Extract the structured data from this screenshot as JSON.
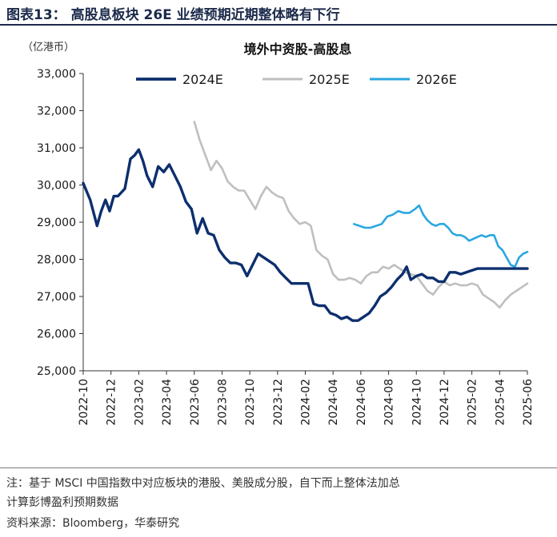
{
  "header": {
    "figure_title": "图表13：  高股息板块 26E 业绩预期近期整体略有下行"
  },
  "chart_data": {
    "type": "line",
    "title": "境外中资股-高股息",
    "unit_label": "（亿港币）",
    "ylim": [
      25000,
      33000
    ],
    "yticks": [
      25000,
      26000,
      27000,
      28000,
      29000,
      30000,
      31000,
      32000,
      33000
    ],
    "ytick_labels": [
      "25,000",
      "26,000",
      "27,000",
      "28,000",
      "29,000",
      "30,000",
      "31,000",
      "32,000",
      "33,000"
    ],
    "xlim": [
      0,
      32
    ],
    "xtick_labels": [
      "2022-10",
      "2022-12",
      "2023-02",
      "2023-04",
      "2023-06",
      "2023-08",
      "2023-10",
      "2023-12",
      "2024-02",
      "2024-04",
      "2024-06",
      "2024-08",
      "2024-10",
      "2024-12",
      "2025-02",
      "2025-04",
      "2025-06"
    ],
    "x_unit": "months since 2022-10",
    "legend_position": "top",
    "series": [
      {
        "name": "2024E",
        "color": "#0d2f6e",
        "points": [
          [
            0,
            30050
          ],
          [
            0.5,
            29600
          ],
          [
            1,
            28900
          ],
          [
            1.3,
            29300
          ],
          [
            1.6,
            29600
          ],
          [
            1.9,
            29300
          ],
          [
            2.2,
            29700
          ],
          [
            2.5,
            29700
          ],
          [
            3,
            29900
          ],
          [
            3.4,
            30700
          ],
          [
            3.7,
            30800
          ],
          [
            4,
            30950
          ],
          [
            4.3,
            30650
          ],
          [
            4.6,
            30250
          ],
          [
            5,
            29950
          ],
          [
            5.4,
            30500
          ],
          [
            5.8,
            30350
          ],
          [
            6.2,
            30550
          ],
          [
            6.6,
            30250
          ],
          [
            7,
            29950
          ],
          [
            7.4,
            29550
          ],
          [
            7.8,
            29350
          ],
          [
            8.2,
            28700
          ],
          [
            8.6,
            29100
          ],
          [
            9,
            28700
          ],
          [
            9.4,
            28650
          ],
          [
            9.8,
            28250
          ],
          [
            10.2,
            28050
          ],
          [
            10.6,
            27900
          ],
          [
            11,
            27900
          ],
          [
            11.4,
            27850
          ],
          [
            11.8,
            27550
          ],
          [
            12.2,
            27850
          ],
          [
            12.6,
            28150
          ],
          [
            13,
            28050
          ],
          [
            13.4,
            27950
          ],
          [
            13.8,
            27850
          ],
          [
            14.2,
            27650
          ],
          [
            14.6,
            27500
          ],
          [
            15,
            27350
          ],
          [
            15.4,
            27350
          ],
          [
            15.8,
            27350
          ],
          [
            16.2,
            27350
          ],
          [
            16.6,
            26800
          ],
          [
            17,
            26750
          ],
          [
            17.4,
            26750
          ],
          [
            17.8,
            26550
          ],
          [
            18.2,
            26500
          ],
          [
            18.6,
            26400
          ],
          [
            19,
            26450
          ],
          [
            19.4,
            26350
          ],
          [
            19.8,
            26350
          ],
          [
            20.2,
            26450
          ],
          [
            20.6,
            26550
          ],
          [
            21,
            26750
          ],
          [
            21.4,
            27000
          ],
          [
            21.8,
            27100
          ],
          [
            22.2,
            27250
          ],
          [
            22.6,
            27450
          ],
          [
            23,
            27600
          ],
          [
            23.3,
            27800
          ],
          [
            23.6,
            27450
          ],
          [
            24,
            27550
          ],
          [
            24.4,
            27600
          ],
          [
            24.8,
            27500
          ],
          [
            25.2,
            27500
          ],
          [
            25.6,
            27400
          ],
          [
            26,
            27400
          ],
          [
            26.4,
            27650
          ],
          [
            26.8,
            27650
          ],
          [
            27.2,
            27600
          ],
          [
            27.6,
            27650
          ],
          [
            28,
            27700
          ],
          [
            28.4,
            27750
          ],
          [
            29,
            27750
          ],
          [
            29.6,
            27750
          ],
          [
            30,
            27750
          ],
          [
            31,
            27750
          ],
          [
            32,
            27750
          ]
        ]
      },
      {
        "name": "2025E",
        "color": "#bfbfbf",
        "points": [
          [
            8,
            31700
          ],
          [
            8.4,
            31200
          ],
          [
            8.8,
            30800
          ],
          [
            9.2,
            30400
          ],
          [
            9.6,
            30650
          ],
          [
            10,
            30450
          ],
          [
            10.4,
            30100
          ],
          [
            10.8,
            29950
          ],
          [
            11.2,
            29850
          ],
          [
            11.6,
            29850
          ],
          [
            12,
            29600
          ],
          [
            12.4,
            29350
          ],
          [
            12.8,
            29700
          ],
          [
            13.2,
            29950
          ],
          [
            13.6,
            29800
          ],
          [
            14,
            29700
          ],
          [
            14.4,
            29650
          ],
          [
            14.8,
            29300
          ],
          [
            15.2,
            29100
          ],
          [
            15.6,
            28950
          ],
          [
            16,
            29000
          ],
          [
            16.4,
            28900
          ],
          [
            16.8,
            28250
          ],
          [
            17.2,
            28100
          ],
          [
            17.6,
            28000
          ],
          [
            18,
            27600
          ],
          [
            18.4,
            27450
          ],
          [
            18.8,
            27450
          ],
          [
            19.2,
            27500
          ],
          [
            19.6,
            27450
          ],
          [
            20,
            27350
          ],
          [
            20.4,
            27550
          ],
          [
            20.8,
            27650
          ],
          [
            21.2,
            27650
          ],
          [
            21.6,
            27800
          ],
          [
            22,
            27750
          ],
          [
            22.4,
            27850
          ],
          [
            22.8,
            27750
          ],
          [
            23.2,
            27650
          ],
          [
            23.6,
            27600
          ],
          [
            24,
            27550
          ],
          [
            24.4,
            27350
          ],
          [
            24.8,
            27150
          ],
          [
            25.2,
            27050
          ],
          [
            25.6,
            27250
          ],
          [
            26,
            27400
          ],
          [
            26.4,
            27300
          ],
          [
            26.8,
            27350
          ],
          [
            27.2,
            27300
          ],
          [
            27.6,
            27300
          ],
          [
            28,
            27350
          ],
          [
            28.4,
            27300
          ],
          [
            28.8,
            27050
          ],
          [
            29.2,
            26950
          ],
          [
            29.6,
            26850
          ],
          [
            30,
            26700
          ],
          [
            30.4,
            26900
          ],
          [
            30.8,
            27050
          ],
          [
            31.2,
            27150
          ],
          [
            31.6,
            27250
          ],
          [
            32,
            27350
          ]
        ]
      },
      {
        "name": "2026E",
        "color": "#2aa7e0",
        "points": [
          [
            19.5,
            28950
          ],
          [
            19.9,
            28900
          ],
          [
            20.3,
            28850
          ],
          [
            20.7,
            28850
          ],
          [
            21.1,
            28900
          ],
          [
            21.5,
            28950
          ],
          [
            21.9,
            29150
          ],
          [
            22.3,
            29200
          ],
          [
            22.7,
            29300
          ],
          [
            23.1,
            29250
          ],
          [
            23.5,
            29250
          ],
          [
            23.9,
            29350
          ],
          [
            24.2,
            29450
          ],
          [
            24.5,
            29200
          ],
          [
            24.8,
            29050
          ],
          [
            25.1,
            28950
          ],
          [
            25.4,
            28900
          ],
          [
            25.7,
            28950
          ],
          [
            26,
            28950
          ],
          [
            26.3,
            28850
          ],
          [
            26.6,
            28700
          ],
          [
            26.9,
            28650
          ],
          [
            27.2,
            28650
          ],
          [
            27.5,
            28600
          ],
          [
            27.8,
            28500
          ],
          [
            28.1,
            28550
          ],
          [
            28.4,
            28600
          ],
          [
            28.7,
            28650
          ],
          [
            29,
            28600
          ],
          [
            29.3,
            28650
          ],
          [
            29.6,
            28650
          ],
          [
            29.9,
            28350
          ],
          [
            30.2,
            28250
          ],
          [
            30.5,
            28050
          ],
          [
            30.8,
            27850
          ],
          [
            31.1,
            27800
          ],
          [
            31.4,
            28050
          ],
          [
            31.7,
            28150
          ],
          [
            32,
            28200
          ]
        ]
      }
    ]
  },
  "footer": {
    "note_line1": "注：基于 MSCI 中国指数中对应板块的港股、美股成分股，自下而上整体法加总",
    "note_line2": "计算彭博盈利预期数据",
    "source": "资料来源：Bloomberg，华泰研究"
  }
}
